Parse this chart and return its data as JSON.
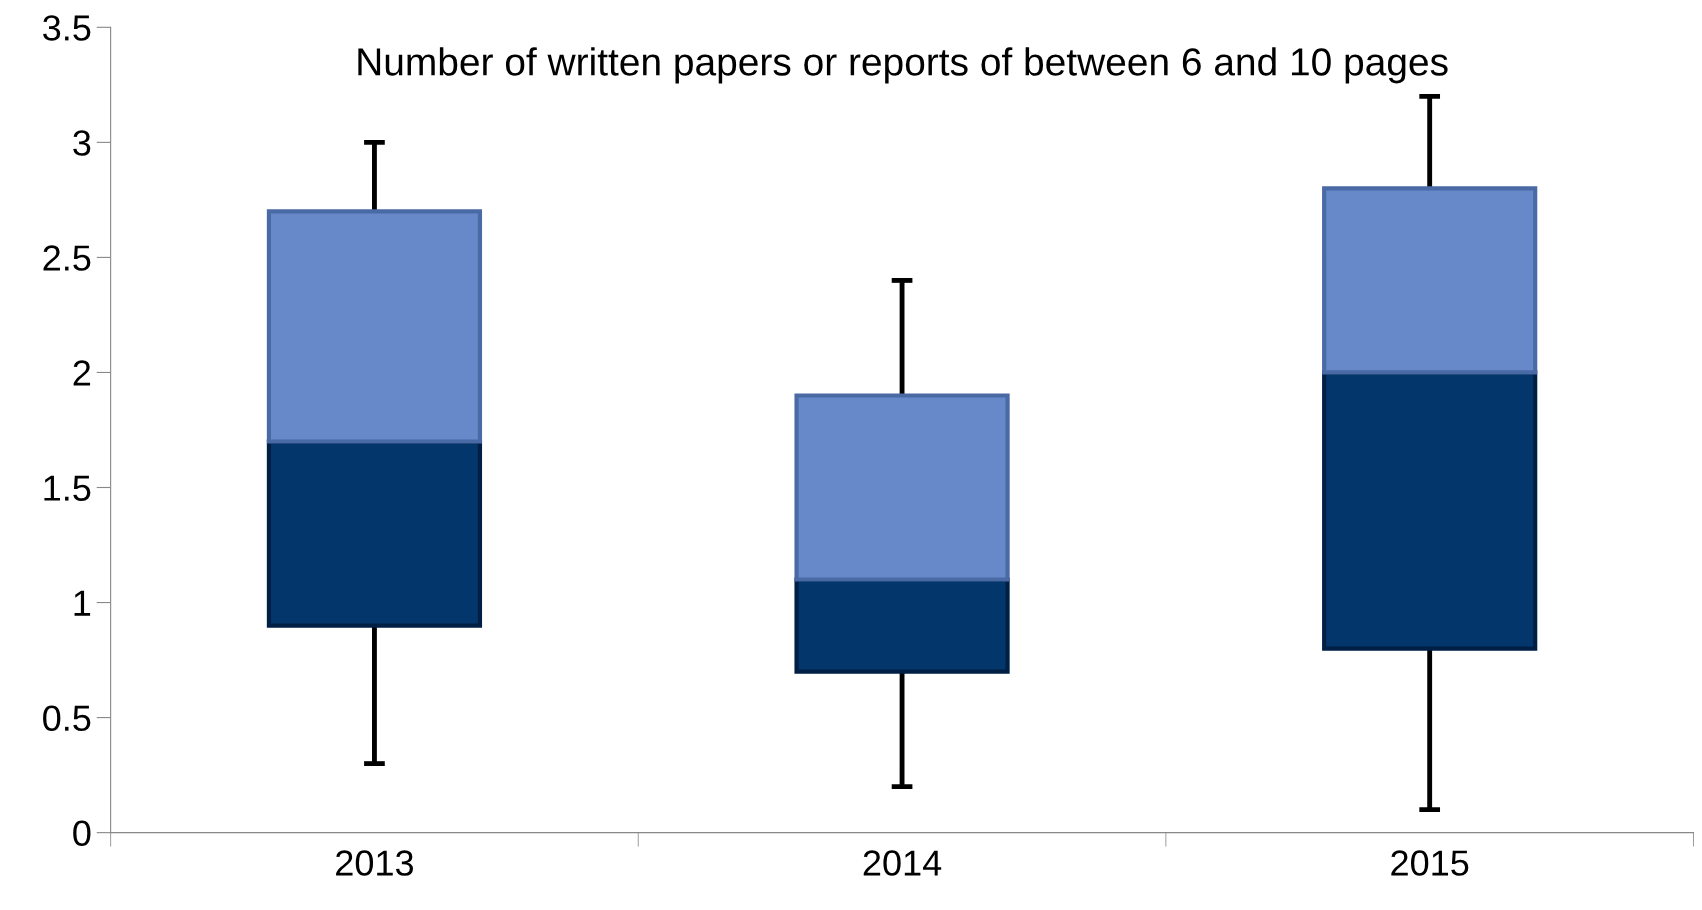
{
  "chart_data": {
    "type": "box",
    "title": "Number of written papers or reports of between 6 and 10 pages",
    "categories": [
      "2013",
      "2014",
      "2015"
    ],
    "boxes": [
      {
        "low": 0.3,
        "q1": 0.9,
        "median": 1.7,
        "q3": 2.7,
        "high": 3.0
      },
      {
        "low": 0.2,
        "q1": 0.7,
        "median": 1.1,
        "q3": 1.9,
        "high": 2.4
      },
      {
        "low": 0.1,
        "q1": 0.8,
        "median": 2.0,
        "q3": 2.8,
        "high": 3.2
      }
    ],
    "colors": [
      "#03366a",
      "#03366a",
      "#03366a"
    ],
    "color": "#6788c9",
    "ylim": [
      0,
      3.5
    ],
    "yticks": [
      0,
      0.5,
      1,
      1.5,
      2,
      2.5,
      3,
      3.5
    ],
    "grid": false
  }
}
